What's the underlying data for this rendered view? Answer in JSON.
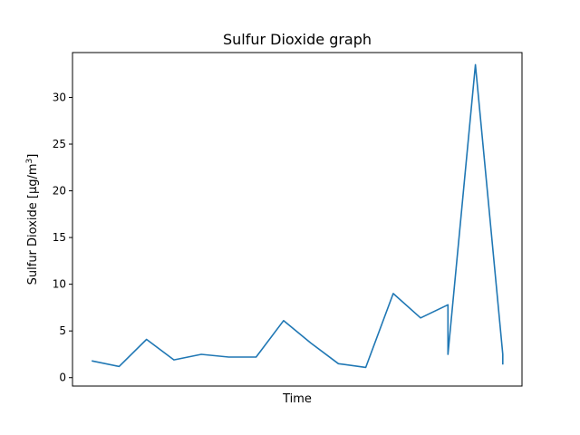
{
  "chart_data": {
    "type": "line",
    "title": "Sulfur Dioxide graph",
    "xlabel": "Time",
    "ylabel_main": "Sulfur Dioxide [μg/m",
    "ylabel_sup": "3",
    "ylabel_end": "]",
    "ylim": [
      -0.9,
      34.8
    ],
    "xlim": [
      -0.7,
      15.7
    ],
    "yticks": [
      0,
      5,
      10,
      15,
      20,
      25,
      30
    ],
    "grid": false,
    "x_tick_labels_visible": false,
    "series": [
      {
        "color": "#1f77b4",
        "x": [
          0,
          1,
          2,
          3,
          4,
          5,
          6,
          7,
          8,
          9,
          10,
          11,
          12,
          13,
          13.0,
          14,
          15,
          15.0
        ],
        "y": [
          1.8,
          1.2,
          4.1,
          1.9,
          2.5,
          2.2,
          2.2,
          6.1,
          3.7,
          1.5,
          1.1,
          9.0,
          6.4,
          7.8,
          2.5,
          33.5,
          2.5,
          1.4
        ]
      }
    ]
  }
}
